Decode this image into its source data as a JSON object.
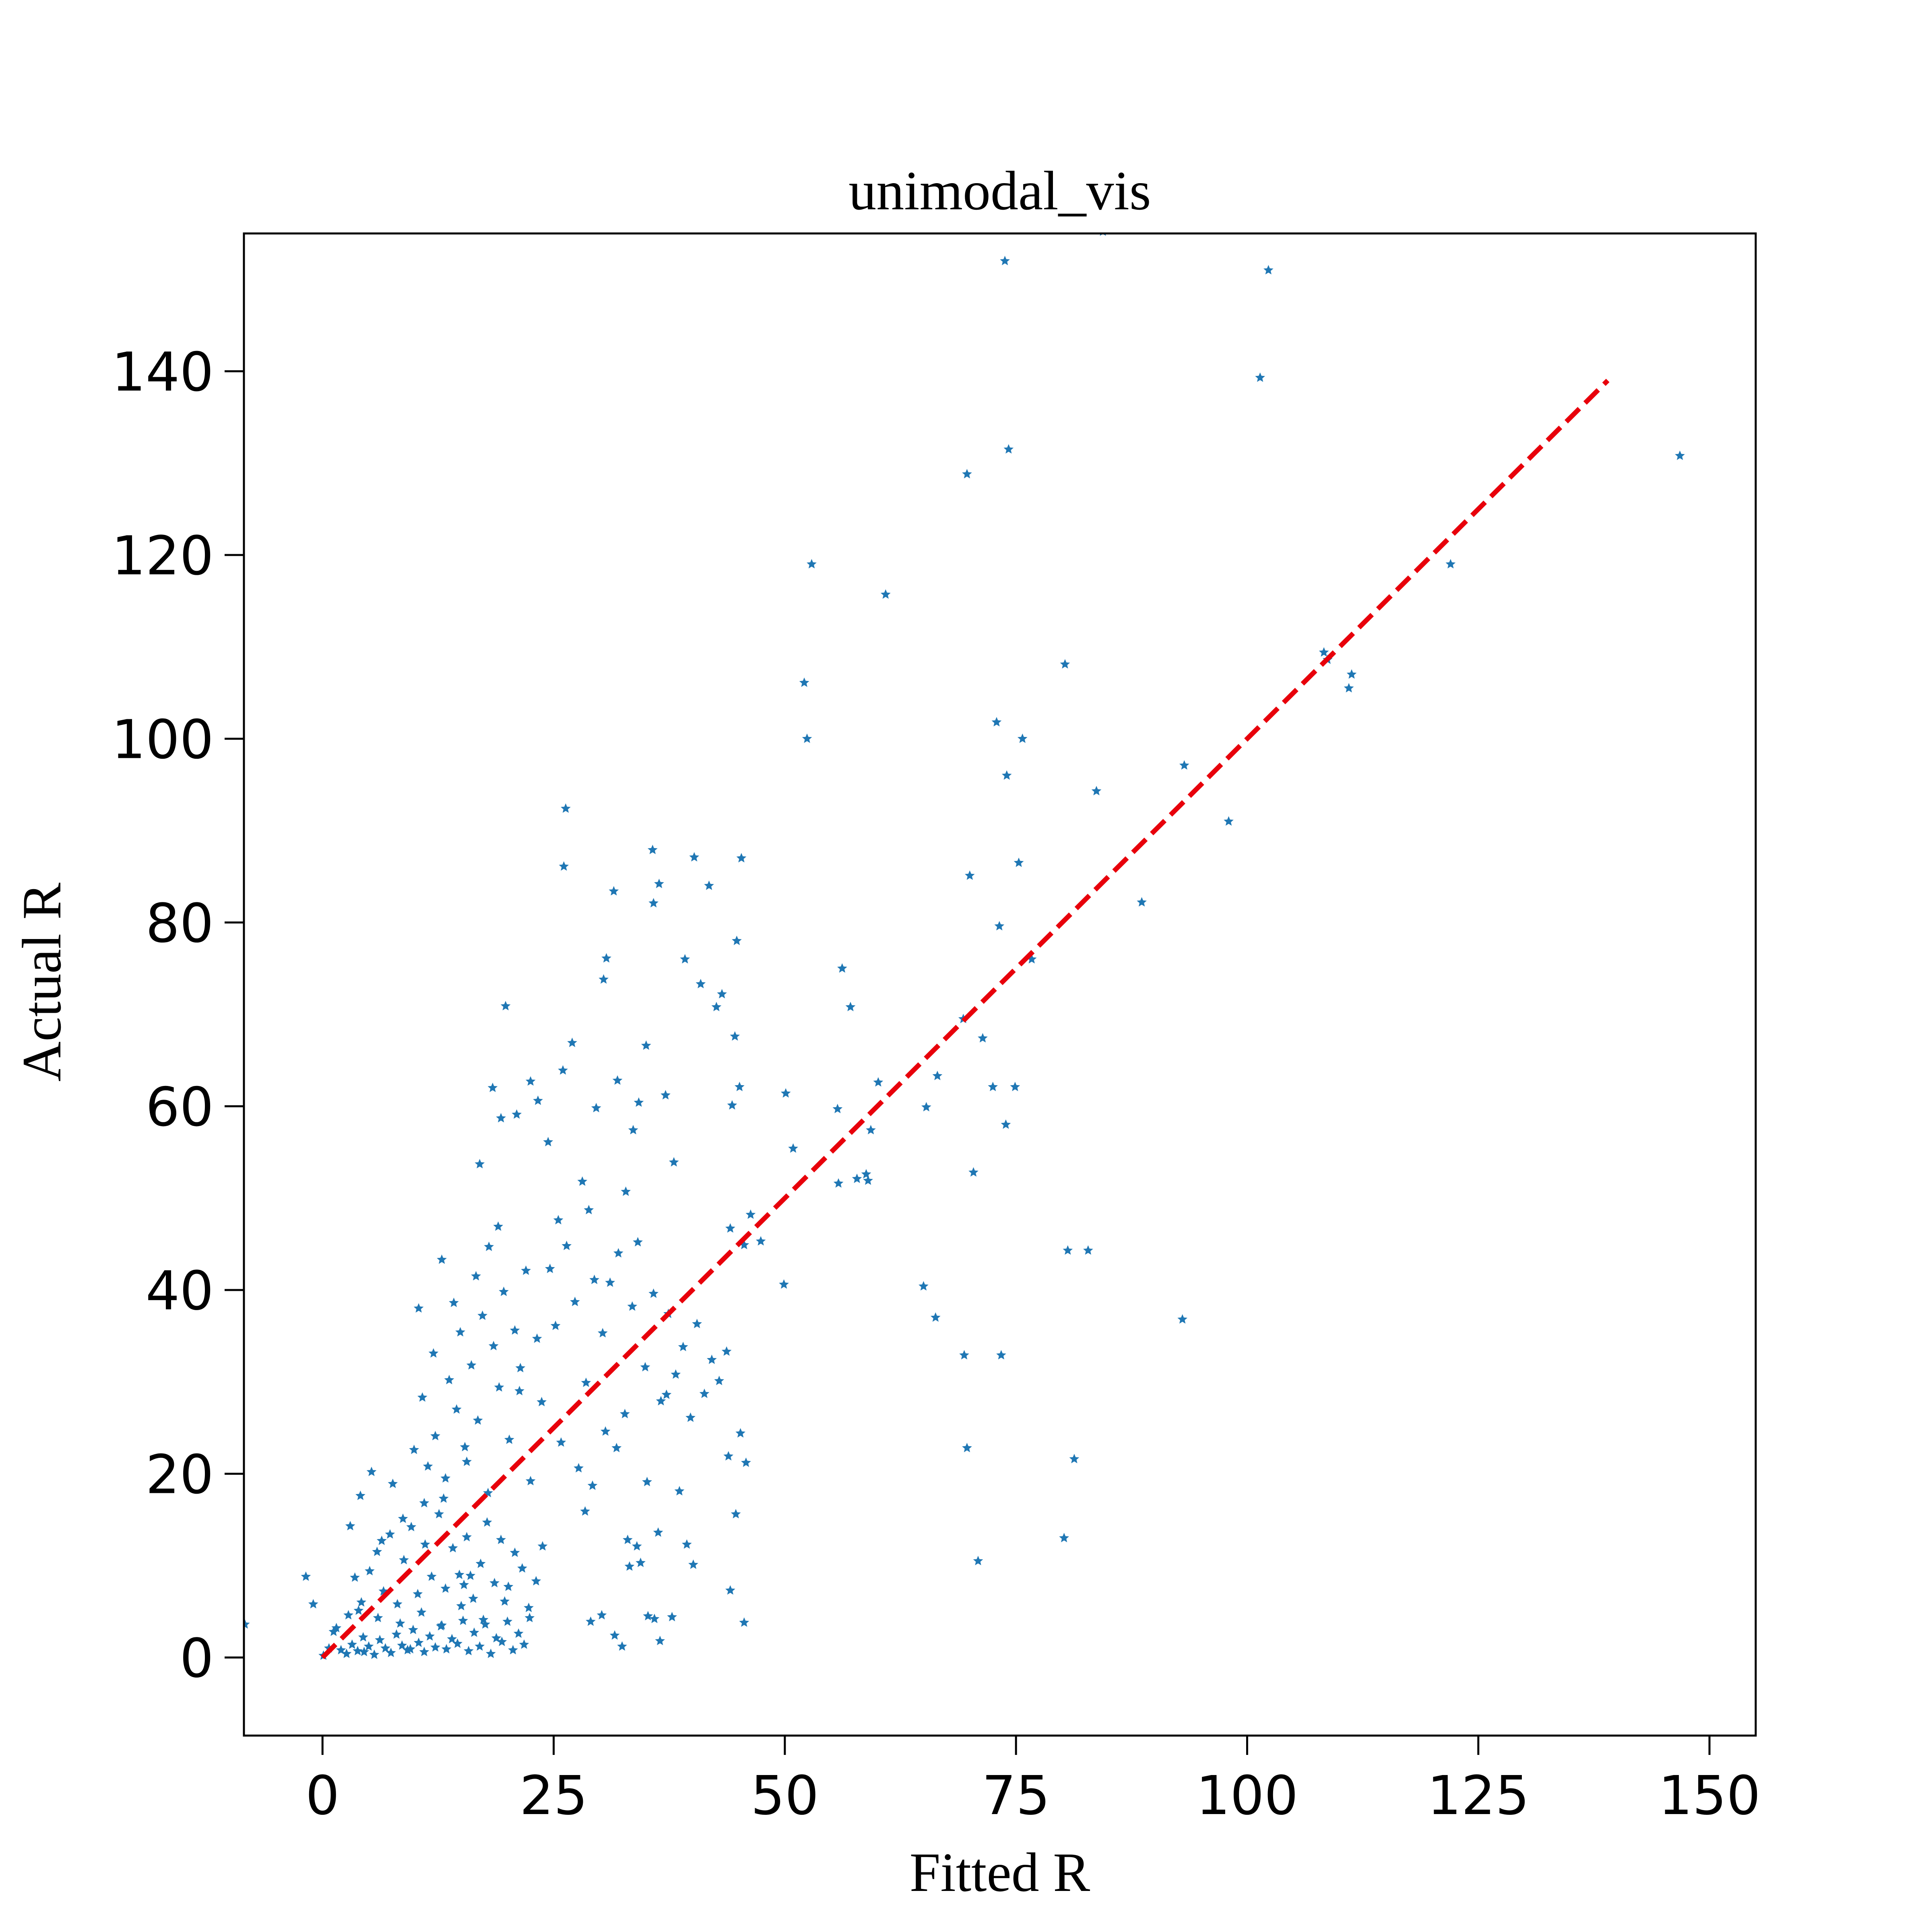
{
  "chart_data": {
    "type": "scatter",
    "title": "unimodal_vis",
    "xlabel": "Fitted R",
    "ylabel": "Actual R",
    "xlim": [
      -8.5,
      155
    ],
    "ylim": [
      -8.5,
      155
    ],
    "xticks": [
      0,
      25,
      50,
      75,
      100,
      125,
      150
    ],
    "yticks": [
      0,
      20,
      40,
      60,
      80,
      100,
      120,
      140
    ],
    "grid": false,
    "legend": "none",
    "series": [
      {
        "marker": "star",
        "color": "#1f77b4",
        "points": [
          [
            0.1,
            0.2
          ],
          [
            0.7,
            1.0
          ],
          [
            1.2,
            2.8
          ],
          [
            2.0,
            0.8
          ],
          [
            2.6,
            0.4
          ],
          [
            3.2,
            1.4
          ],
          [
            3.8,
            0.7
          ],
          [
            4.4,
            2.2
          ],
          [
            5.0,
            1.2
          ],
          [
            5.6,
            0.3
          ],
          [
            6.2,
            1.9
          ],
          [
            6.8,
            1.0
          ],
          [
            7.4,
            0.5
          ],
          [
            8.0,
            2.5
          ],
          [
            8.6,
            1.3
          ],
          [
            9.2,
            0.8
          ],
          [
            9.8,
            3.0
          ],
          [
            10.4,
            1.6
          ],
          [
            11.0,
            0.6
          ],
          [
            11.6,
            2.3
          ],
          [
            12.2,
            1.1
          ],
          [
            12.8,
            3.4
          ],
          [
            13.4,
            0.9
          ],
          [
            14.0,
            2.0
          ],
          [
            14.6,
            1.5
          ],
          [
            15.2,
            4.0
          ],
          [
            15.8,
            0.7
          ],
          [
            16.4,
            2.7
          ],
          [
            17.0,
            1.2
          ],
          [
            17.6,
            3.6
          ],
          [
            18.2,
            0.4
          ],
          [
            18.8,
            2.1
          ],
          [
            19.4,
            1.7
          ],
          [
            20.0,
            3.9
          ],
          [
            20.6,
            0.8
          ],
          [
            21.2,
            2.6
          ],
          [
            21.8,
            1.4
          ],
          [
            22.4,
            4.3
          ],
          [
            4.5,
            0.6
          ],
          [
            9.5,
            0.9
          ],
          [
            1.5,
            3.2
          ],
          [
            2.8,
            4.6
          ],
          [
            3.5,
            8.7
          ],
          [
            4.2,
            6.0
          ],
          [
            5.1,
            9.4
          ],
          [
            5.9,
            11.5
          ],
          [
            6.6,
            7.2
          ],
          [
            7.3,
            13.4
          ],
          [
            8.1,
            5.8
          ],
          [
            8.8,
            10.6
          ],
          [
            9.6,
            14.2
          ],
          [
            10.3,
            6.9
          ],
          [
            11.1,
            12.3
          ],
          [
            11.8,
            8.8
          ],
          [
            12.6,
            15.6
          ],
          [
            13.3,
            7.5
          ],
          [
            14.1,
            11.9
          ],
          [
            14.8,
            9.0
          ],
          [
            15.6,
            13.1
          ],
          [
            16.3,
            6.4
          ],
          [
            17.1,
            10.2
          ],
          [
            17.8,
            14.7
          ],
          [
            18.6,
            8.1
          ],
          [
            19.3,
            12.8
          ],
          [
            20.1,
            7.7
          ],
          [
            20.8,
            11.4
          ],
          [
            21.6,
            9.7
          ],
          [
            22.3,
            5.4
          ],
          [
            23.1,
            8.3
          ],
          [
            23.8,
            12.1
          ],
          [
            3.9,
            5.1
          ],
          [
            6.0,
            4.3
          ],
          [
            8.4,
            3.7
          ],
          [
            10.7,
            4.9
          ],
          [
            12.9,
            3.5
          ],
          [
            15.0,
            5.6
          ],
          [
            17.4,
            4.1
          ],
          [
            19.7,
            6.1
          ],
          [
            16.0,
            8.9
          ],
          [
            15.3,
            7.9
          ],
          [
            3.0,
            14.3
          ],
          [
            4.1,
            17.6
          ],
          [
            5.3,
            20.2
          ],
          [
            6.4,
            12.7
          ],
          [
            7.6,
            18.9
          ],
          [
            8.7,
            15.1
          ],
          [
            9.9,
            22.6
          ],
          [
            11.0,
            16.8
          ],
          [
            12.2,
            24.1
          ],
          [
            13.3,
            19.5
          ],
          [
            14.5,
            27.0
          ],
          [
            15.6,
            21.3
          ],
          [
            16.8,
            25.8
          ],
          [
            17.9,
            17.9
          ],
          [
            19.1,
            29.4
          ],
          [
            20.2,
            23.7
          ],
          [
            21.4,
            31.5
          ],
          [
            22.5,
            19.2
          ],
          [
            23.7,
            27.8
          ],
          [
            10.8,
            28.3
          ],
          [
            12.0,
            33.1
          ],
          [
            13.7,
            30.2
          ],
          [
            14.9,
            35.4
          ],
          [
            16.1,
            31.8
          ],
          [
            17.3,
            37.2
          ],
          [
            18.5,
            33.9
          ],
          [
            19.6,
            39.8
          ],
          [
            20.8,
            35.6
          ],
          [
            22.0,
            42.1
          ],
          [
            18.0,
            44.7
          ],
          [
            16.6,
            41.5
          ],
          [
            14.2,
            38.6
          ],
          [
            12.9,
            43.3
          ],
          [
            10.4,
            38.0
          ],
          [
            19.0,
            46.9
          ],
          [
            21.3,
            29.0
          ],
          [
            23.2,
            34.7
          ],
          [
            15.4,
            22.9
          ],
          [
            13.1,
            17.3
          ],
          [
            11.4,
            20.8
          ],
          [
            17.0,
            53.7
          ],
          [
            18.4,
            62.0
          ],
          [
            19.3,
            58.7
          ],
          [
            19.8,
            70.9
          ],
          [
            21.0,
            59.1
          ],
          [
            22.5,
            62.7
          ],
          [
            23.3,
            60.6
          ],
          [
            24.4,
            56.1
          ],
          [
            25.5,
            47.6
          ],
          [
            26.0,
            63.9
          ],
          [
            26.3,
            92.4
          ],
          [
            26.1,
            86.1
          ],
          [
            27.0,
            66.9
          ],
          [
            28.1,
            51.8
          ],
          [
            28.8,
            48.7
          ],
          [
            29.6,
            59.8
          ],
          [
            30.4,
            73.8
          ],
          [
            30.7,
            76.1
          ],
          [
            31.5,
            83.4
          ],
          [
            31.9,
            62.8
          ],
          [
            32.8,
            50.7
          ],
          [
            33.6,
            57.4
          ],
          [
            34.2,
            60.4
          ],
          [
            35.0,
            66.6
          ],
          [
            35.7,
            87.9
          ],
          [
            35.8,
            82.1
          ],
          [
            36.4,
            84.2
          ],
          [
            37.1,
            61.2
          ],
          [
            38.0,
            53.9
          ],
          [
            39.2,
            76.0
          ],
          [
            40.2,
            87.1
          ],
          [
            40.9,
            73.3
          ],
          [
            41.8,
            84.0
          ],
          [
            42.6,
            70.8
          ],
          [
            43.2,
            72.2
          ],
          [
            44.3,
            60.1
          ],
          [
            44.6,
            67.6
          ],
          [
            44.8,
            78.0
          ],
          [
            45.1,
            62.1
          ],
          [
            45.3,
            87.0
          ],
          [
            24.6,
            42.3
          ],
          [
            25.2,
            36.1
          ],
          [
            26.4,
            44.8
          ],
          [
            27.3,
            38.7
          ],
          [
            28.5,
            29.9
          ],
          [
            29.4,
            41.1
          ],
          [
            30.3,
            35.3
          ],
          [
            31.1,
            40.8
          ],
          [
            32.0,
            44.0
          ],
          [
            32.7,
            26.5
          ],
          [
            33.5,
            38.2
          ],
          [
            34.1,
            45.2
          ],
          [
            34.9,
            31.6
          ],
          [
            35.8,
            39.6
          ],
          [
            36.6,
            27.9
          ],
          [
            37.4,
            37.4
          ],
          [
            38.2,
            30.8
          ],
          [
            39.0,
            33.8
          ],
          [
            39.8,
            26.1
          ],
          [
            40.5,
            36.3
          ],
          [
            41.3,
            28.7
          ],
          [
            42.1,
            32.4
          ],
          [
            42.9,
            30.1
          ],
          [
            43.7,
            33.3
          ],
          [
            44.1,
            46.7
          ],
          [
            45.6,
            44.9
          ],
          [
            46.3,
            48.2
          ],
          [
            47.4,
            45.3
          ],
          [
            50.1,
            61.4
          ],
          [
            50.9,
            55.4
          ],
          [
            25.8,
            23.4
          ],
          [
            27.7,
            20.6
          ],
          [
            28.4,
            15.9
          ],
          [
            29.2,
            18.7
          ],
          [
            30.6,
            24.6
          ],
          [
            31.8,
            22.8
          ],
          [
            33.0,
            12.8
          ],
          [
            34.4,
            10.3
          ],
          [
            35.1,
            19.1
          ],
          [
            36.3,
            13.6
          ],
          [
            29.0,
            3.9
          ],
          [
            30.2,
            4.6
          ],
          [
            31.6,
            2.4
          ],
          [
            32.4,
            1.2
          ],
          [
            33.2,
            9.9
          ],
          [
            34.0,
            12.1
          ],
          [
            35.2,
            4.5
          ],
          [
            35.9,
            4.2
          ],
          [
            36.5,
            1.8
          ],
          [
            37.8,
            4.4
          ],
          [
            39.4,
            12.3
          ],
          [
            40.1,
            10.1
          ],
          [
            44.1,
            7.3
          ],
          [
            44.7,
            15.6
          ],
          [
            45.2,
            24.4
          ],
          [
            45.8,
            21.2
          ],
          [
            45.6,
            3.8
          ],
          [
            43.9,
            21.9
          ],
          [
            38.6,
            18.1
          ],
          [
            37.2,
            28.6
          ],
          [
            49.9,
            40.6
          ],
          [
            52.1,
            106.1
          ],
          [
            52.4,
            100.0
          ],
          [
            52.9,
            119.0
          ],
          [
            55.7,
            59.7
          ],
          [
            55.8,
            51.6
          ],
          [
            56.2,
            75.0
          ],
          [
            57.1,
            70.8
          ],
          [
            57.8,
            52.1
          ],
          [
            58.8,
            52.6
          ],
          [
            59.0,
            51.9
          ],
          [
            59.3,
            57.4
          ],
          [
            60.1,
            62.6
          ],
          [
            60.9,
            115.7
          ],
          [
            65.0,
            40.4
          ],
          [
            65.3,
            59.9
          ],
          [
            66.3,
            37.0
          ],
          [
            66.5,
            63.3
          ],
          [
            69.3,
            69.5
          ],
          [
            69.4,
            32.9
          ],
          [
            69.7,
            128.8
          ],
          [
            69.7,
            22.8
          ],
          [
            70.0,
            85.1
          ],
          [
            70.4,
            52.8
          ],
          [
            70.9,
            10.5
          ],
          [
            71.4,
            67.4
          ],
          [
            72.5,
            62.1
          ],
          [
            72.9,
            101.8
          ],
          [
            73.2,
            79.6
          ],
          [
            73.4,
            32.9
          ],
          [
            73.8,
            152.0
          ],
          [
            73.9,
            58.0
          ],
          [
            74.0,
            96.0
          ],
          [
            74.2,
            131.5
          ],
          [
            74.9,
            62.1
          ],
          [
            75.3,
            86.5
          ],
          [
            75.7,
            100.0
          ],
          [
            76.7,
            76.0
          ],
          [
            80.2,
            13.0
          ],
          [
            80.3,
            108.1
          ],
          [
            80.6,
            44.3
          ],
          [
            81.3,
            21.6
          ],
          [
            82.8,
            44.3
          ],
          [
            83.7,
            94.3
          ],
          [
            84.4,
            155.2
          ],
          [
            88.6,
            82.2
          ],
          [
            93.0,
            36.8
          ],
          [
            93.2,
            97.1
          ],
          [
            98.0,
            91.0
          ],
          [
            101.4,
            139.3
          ],
          [
            102.3,
            151.0
          ],
          [
            108.3,
            109.4
          ],
          [
            108.7,
            108.6
          ],
          [
            111.0,
            105.5
          ],
          [
            111.3,
            107.0
          ],
          [
            122.0,
            119.0
          ],
          [
            146.8,
            130.8
          ],
          [
            -1.8,
            8.8
          ],
          [
            -8.4,
            3.6
          ],
          [
            -1.0,
            5.8
          ]
        ]
      }
    ],
    "reference_line": {
      "style": "dashed",
      "color": "#e8000b",
      "from": [
        0,
        0
      ],
      "to": [
        139,
        139
      ]
    }
  }
}
